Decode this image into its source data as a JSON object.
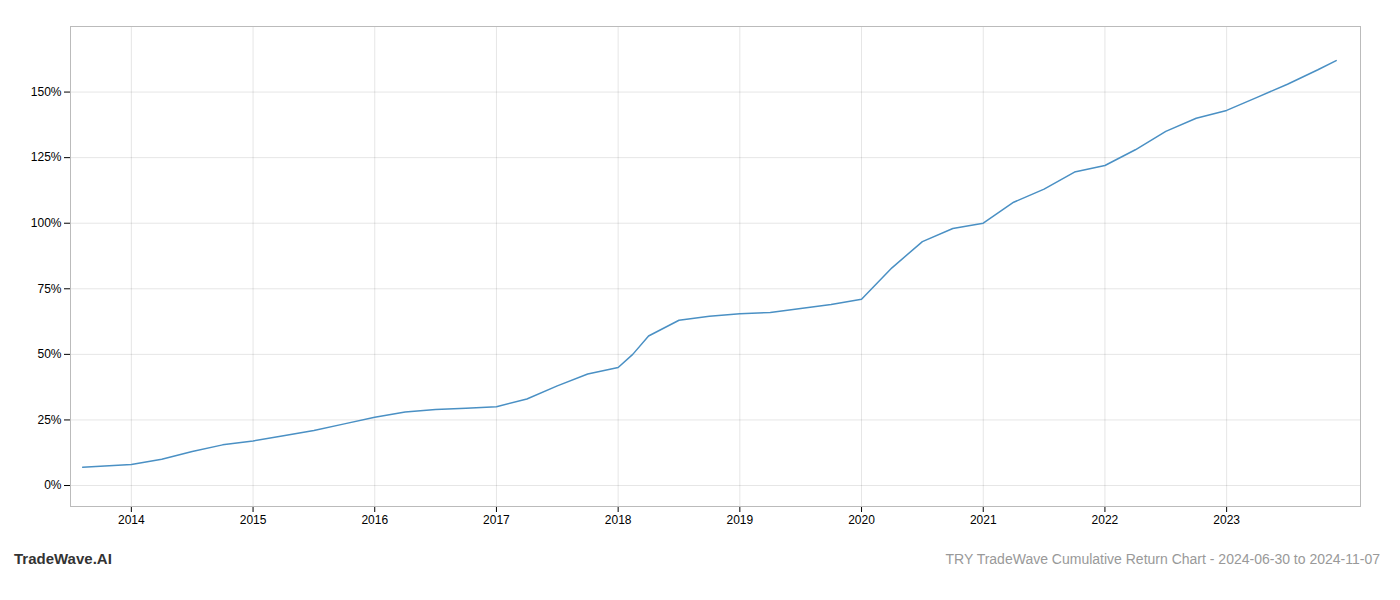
{
  "chart_data": {
    "type": "line",
    "title": "TRY TradeWave Cumulative Return Chart - 2024-06-30 to 2024-11-07",
    "annotations": [
      "TradeWave.AI"
    ],
    "x": [
      2013.6,
      2014.0,
      2014.25,
      2014.5,
      2014.75,
      2015.0,
      2015.25,
      2015.5,
      2015.75,
      2016.0,
      2016.25,
      2016.5,
      2016.75,
      2017.0,
      2017.25,
      2017.5,
      2017.75,
      2018.0,
      2018.12,
      2018.25,
      2018.5,
      2018.75,
      2019.0,
      2019.25,
      2019.5,
      2019.75,
      2020.0,
      2020.25,
      2020.5,
      2020.75,
      2021.0,
      2021.25,
      2021.5,
      2021.75,
      2022.0,
      2022.25,
      2022.5,
      2022.75,
      2023.0,
      2023.25,
      2023.5,
      2023.75,
      2023.9
    ],
    "values": [
      7.0,
      8.0,
      10.0,
      13.0,
      15.5,
      17.0,
      19.0,
      21.0,
      23.5,
      26.0,
      28.0,
      29.0,
      29.5,
      30.0,
      33.0,
      38.0,
      42.5,
      45.0,
      50.0,
      57.0,
      63.0,
      64.5,
      65.5,
      66.0,
      67.5,
      69.0,
      71.0,
      83.0,
      93.0,
      98.0,
      100.0,
      108.0,
      113.0,
      119.5,
      122.0,
      128.0,
      135.0,
      140.0,
      143.0,
      148.0,
      153.0,
      158.5,
      162.0
    ],
    "color": "#4a90c4",
    "xlim": [
      2013.5,
      2024.1
    ],
    "xticks": [
      2014,
      2015,
      2016,
      2017,
      2018,
      2019,
      2020,
      2021,
      2022,
      2023
    ],
    "ylim": [
      -8,
      175
    ],
    "yticks": [
      {
        "value": 0,
        "label": "0%"
      },
      {
        "value": 25,
        "label": "25%"
      },
      {
        "value": 50,
        "label": "50%"
      },
      {
        "value": 75,
        "label": "75%"
      },
      {
        "value": 100,
        "label": "100%"
      },
      {
        "value": 125,
        "label": "125%"
      },
      {
        "value": 150,
        "label": "150%"
      }
    ],
    "grid": true
  }
}
